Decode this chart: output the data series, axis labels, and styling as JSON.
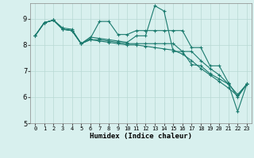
{
  "xlabel": "Humidex (Indice chaleur)",
  "bg_color": "#d8f0ee",
  "grid_color": "#b8d8d4",
  "line_color": "#1a7a6e",
  "xlim": [
    -0.5,
    23.5
  ],
  "ylim": [
    5,
    9.6
  ],
  "yticks": [
    5,
    6,
    7,
    8,
    9
  ],
  "xticks": [
    0,
    1,
    2,
    3,
    4,
    5,
    6,
    7,
    8,
    9,
    10,
    11,
    12,
    13,
    14,
    15,
    16,
    17,
    18,
    19,
    20,
    21,
    22,
    23
  ],
  "series": [
    [
      8.35,
      8.85,
      8.95,
      8.65,
      8.6,
      8.05,
      8.3,
      8.25,
      8.2,
      8.15,
      8.1,
      8.35,
      8.35,
      9.5,
      9.3,
      7.75,
      7.75,
      7.25,
      7.2,
      6.9,
      6.7,
      6.5,
      5.45,
      6.5
    ],
    [
      8.35,
      8.85,
      8.95,
      8.6,
      8.55,
      8.05,
      8.25,
      8.9,
      8.9,
      8.4,
      8.4,
      8.55,
      8.55,
      8.55,
      8.55,
      8.55,
      8.55,
      7.9,
      7.9,
      7.2,
      7.2,
      6.55,
      6.0,
      6.5
    ],
    [
      8.35,
      8.85,
      8.95,
      8.6,
      8.55,
      8.05,
      8.2,
      8.2,
      8.15,
      8.1,
      8.05,
      8.05,
      8.05,
      8.05,
      8.05,
      8.05,
      7.75,
      7.75,
      7.4,
      7.1,
      6.85,
      6.5,
      6.1,
      6.5
    ],
    [
      8.35,
      8.85,
      8.95,
      8.6,
      8.55,
      8.05,
      8.2,
      8.15,
      8.1,
      8.05,
      8.0,
      8.0,
      7.95,
      7.9,
      7.85,
      7.8,
      7.65,
      7.4,
      7.1,
      6.85,
      6.6,
      6.35,
      6.05,
      6.5
    ]
  ]
}
